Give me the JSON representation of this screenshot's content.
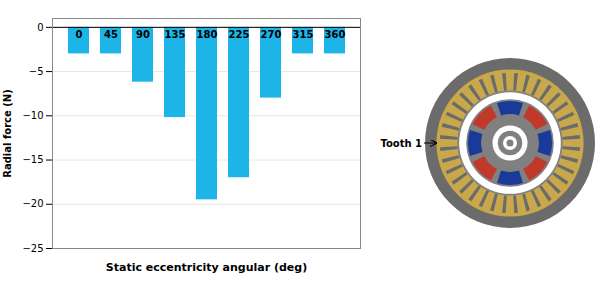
{
  "chart_data": {
    "type": "bar",
    "categories": [
      "0",
      "45",
      "90",
      "135",
      "180",
      "225",
      "270",
      "315",
      "360"
    ],
    "values": [
      -3.0,
      -3.0,
      -6.2,
      -10.2,
      -19.5,
      -17.0,
      -8.0,
      -3.0,
      -3.0
    ],
    "color": "#1DB4E8",
    "xlabel": "Static eccentricity angular (deg)",
    "ylabel": "Radial force (N)",
    "ylim": [
      -25,
      1
    ],
    "yticks": [
      0,
      -5,
      -10,
      -15,
      -20,
      -25
    ],
    "grid": true,
    "annotations": [
      "Tooth 1"
    ]
  }
}
